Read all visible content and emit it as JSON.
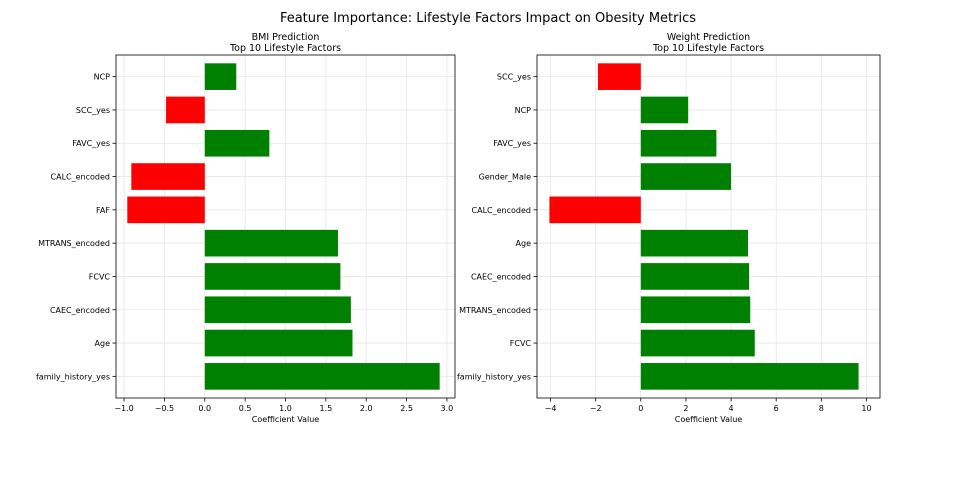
{
  "suptitle": "Feature Importance: Lifestyle Factors Impact on Obesity Metrics",
  "colors": {
    "positive": "#008000",
    "negative": "#ff0000",
    "grid": "#e6e6e6",
    "axis": "#000000"
  },
  "chart_data": [
    {
      "type": "bar",
      "orientation": "horizontal",
      "title": "BMI Prediction\nTop 10 Lifestyle Factors",
      "xlabel": "Coefficient Value",
      "ylabel": "",
      "xlim": [
        -1.1,
        3.1
      ],
      "xticks": [
        -1.0,
        -0.5,
        0.0,
        0.5,
        1.0,
        1.5,
        2.0,
        2.5,
        3.0
      ],
      "xtick_labels": [
        "−1.0",
        "−0.5",
        "0.0",
        "0.5",
        "1.0",
        "1.5",
        "2.0",
        "2.5",
        "3.0"
      ],
      "grid": true,
      "categories": [
        "NCP",
        "SCC_yes",
        "FAVC_yes",
        "CALC_encoded",
        "FAF",
        "MTRANS_encoded",
        "FCVC",
        "CAEC_encoded",
        "Age",
        "family_history_yes"
      ],
      "values": [
        0.39,
        -0.48,
        0.8,
        -0.91,
        -0.96,
        1.65,
        1.68,
        1.81,
        1.83,
        2.91
      ]
    },
    {
      "type": "bar",
      "orientation": "horizontal",
      "title": "Weight Prediction\nTop 10 Lifestyle Factors",
      "xlabel": "Coefficient Value",
      "ylabel": "",
      "xlim": [
        -4.6,
        10.6
      ],
      "xticks": [
        -4,
        -2,
        0,
        2,
        4,
        6,
        8,
        10
      ],
      "xtick_labels": [
        "−4",
        "−2",
        "0",
        "2",
        "4",
        "6",
        "8",
        "10"
      ],
      "grid": true,
      "categories": [
        "SCC_yes",
        "NCP",
        "FAVC_yes",
        "Gender_Male",
        "CALC_encoded",
        "Age",
        "CAEC_encoded",
        "MTRANS_encoded",
        "FCVC",
        "family_history_yes"
      ],
      "values": [
        -1.9,
        2.1,
        3.35,
        4.0,
        -4.05,
        4.75,
        4.8,
        4.85,
        5.05,
        9.65
      ]
    }
  ]
}
